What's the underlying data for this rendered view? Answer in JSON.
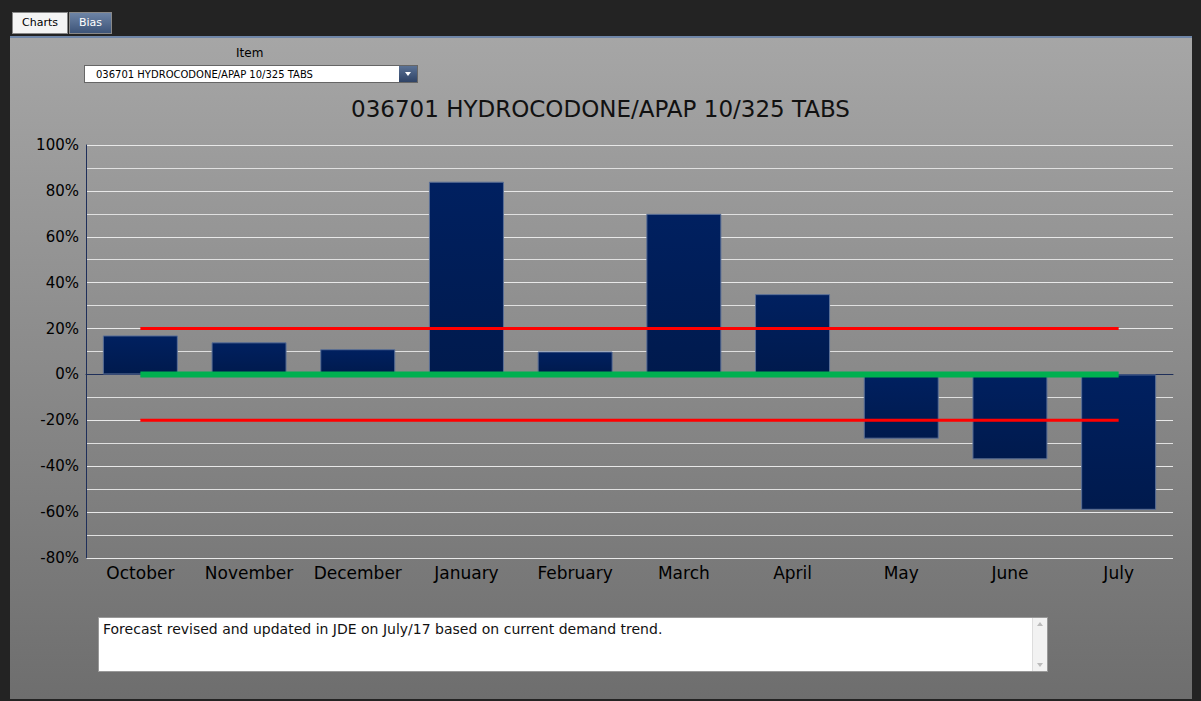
{
  "ui": {
    "tabs": [
      "Charts",
      "Bias"
    ],
    "active_tab": "Bias",
    "item_label": "Item",
    "item_selected": "036701 HYDROCODONE/APAP 10/325 TABS",
    "note": "Forecast revised and updated in JDE on July/17 based on current demand trend."
  },
  "chart_data": {
    "type": "bar",
    "title": "036701 HYDROCODONE/APAP 10/325 TABS",
    "categories": [
      "October",
      "November",
      "December",
      "January",
      "February",
      "March",
      "April",
      "May",
      "June",
      "July"
    ],
    "values": [
      17,
      14,
      11,
      84,
      10,
      70,
      35,
      -28,
      -37,
      -59
    ],
    "color": "#002060",
    "reference_lines": [
      {
        "value": 20,
        "color": "#ff0000"
      },
      {
        "value": -20,
        "color": "#ff0000"
      },
      {
        "value": 0,
        "color": "#00b050"
      }
    ],
    "ylim": [
      -80,
      100
    ],
    "yticks": [
      {
        "value": -80,
        "label": "-80%"
      },
      {
        "value": -60,
        "label": "-60%"
      },
      {
        "value": -40,
        "label": "-40%"
      },
      {
        "value": -20,
        "label": "-20%"
      },
      {
        "value": 0,
        "label": "0%"
      },
      {
        "value": 20,
        "label": "20%"
      },
      {
        "value": 40,
        "label": "40%"
      },
      {
        "value": 60,
        "label": "60%"
      },
      {
        "value": 80,
        "label": "80%"
      },
      {
        "value": 100,
        "label": "100%"
      }
    ],
    "grid": true
  }
}
